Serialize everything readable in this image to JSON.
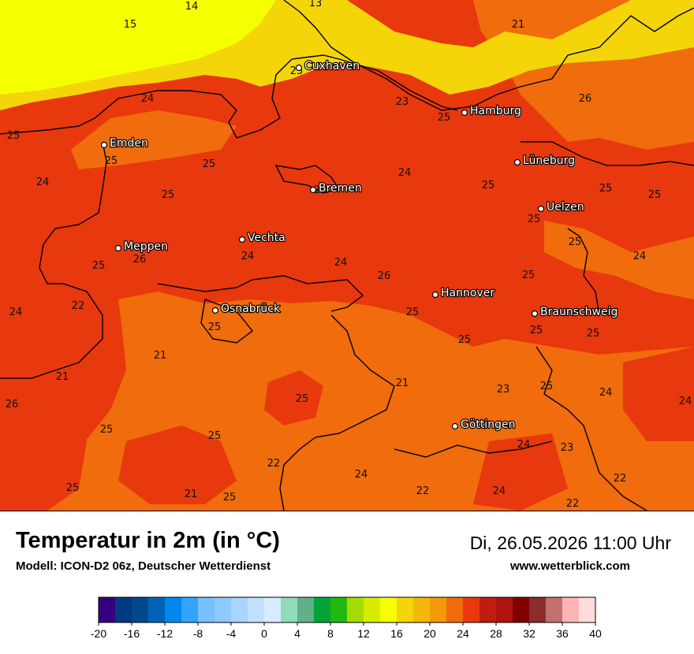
{
  "header": {
    "title": "Temperatur in 2m (in °C)",
    "model": "Modell: ICON-D2 06z, Deutscher Wetterdienst",
    "datetime": "Di, 26.05.2026 11:00 Uhr",
    "site": "www.wetterblick.com"
  },
  "colors": {
    "sea_cold": "#f5ff00",
    "sea_mid": "#f3d50a",
    "warm_orange": "#f06c0c",
    "hot_red": "#e8380d",
    "city_dot": "#ffffff",
    "coastline": "#000000"
  },
  "cities": [
    {
      "name": "Cuxhaven"
    },
    {
      "name": "Hamburg"
    },
    {
      "name": "Emden"
    },
    {
      "name": "Lüneburg"
    },
    {
      "name": "Bremen"
    },
    {
      "name": "Uelzen"
    },
    {
      "name": "Vechta"
    },
    {
      "name": "Meppen"
    },
    {
      "name": "Hannover"
    },
    {
      "name": "Osnabrück"
    },
    {
      "name": "Braunschweig"
    },
    {
      "name": "Göttingen"
    }
  ],
  "values": [
    "14",
    "15",
    "13",
    "21",
    "25",
    "24",
    "23",
    "26",
    "25",
    "25",
    "25",
    "25",
    "24",
    "25",
    "25",
    "25",
    "25",
    "24",
    "25",
    "25",
    "25",
    "24",
    "24",
    "26",
    "25",
    "24",
    "26",
    "25",
    "24",
    "22",
    "25",
    "25",
    "25",
    "25",
    "25",
    "21",
    "21",
    "21",
    "23",
    "25",
    "26",
    "25",
    "24",
    "24",
    "25",
    "25",
    "24",
    "23",
    "22",
    "24",
    "22",
    "25",
    "21",
    "25",
    "22",
    "24",
    "22"
  ],
  "legend": {
    "colors": [
      "#340080",
      "#003a80",
      "#00488c",
      "#0063b8",
      "#0088ee",
      "#32a4ff",
      "#78c0ff",
      "#8ec9ff",
      "#a8d4ff",
      "#c2e0ff",
      "#d8ebff",
      "#90dcb8",
      "#62b088",
      "#02a438",
      "#22b812",
      "#a4dc00",
      "#d8ec00",
      "#f5ff00",
      "#f3d50a",
      "#f3b80a",
      "#f39a0a",
      "#f06c0c",
      "#e8380d",
      "#c01c10",
      "#b01410",
      "#800000",
      "#8c2c2c",
      "#c27070",
      "#ffb4b4",
      "#ffdcdc"
    ],
    "ticks": [
      "-20",
      "-16",
      "-12",
      "-8",
      "-4",
      "0",
      "4",
      "8",
      "12",
      "16",
      "20",
      "24",
      "28",
      "32",
      "36",
      "40"
    ]
  }
}
